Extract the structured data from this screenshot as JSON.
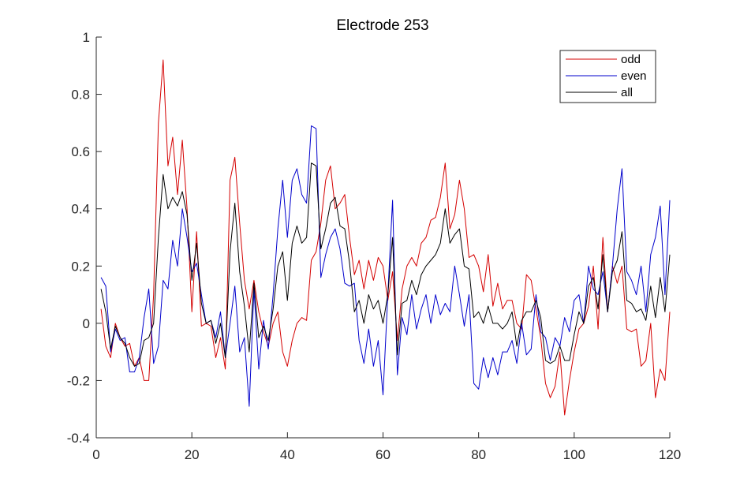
{
  "chart_data": {
    "type": "line",
    "title": "Electrode 253",
    "xlabel": "",
    "ylabel": "",
    "xlim": [
      0,
      120
    ],
    "ylim": [
      -0.4,
      1
    ],
    "xticks": [
      0,
      20,
      40,
      60,
      80,
      100,
      120
    ],
    "yticks": [
      -0.4,
      -0.2,
      0,
      0.2,
      0.4,
      0.6,
      0.8,
      1
    ],
    "x_tick_labels": [
      "0",
      "20",
      "40",
      "60",
      "80",
      "100",
      "120"
    ],
    "y_tick_labels": [
      "-0.4",
      "-0.2",
      "0",
      "0.2",
      "0.4",
      "0.6",
      "0.8",
      "1"
    ],
    "grid": false,
    "legend_position": "top-right",
    "x": [
      1,
      2,
      3,
      4,
      5,
      6,
      7,
      8,
      9,
      10,
      11,
      12,
      13,
      14,
      15,
      16,
      17,
      18,
      19,
      20,
      21,
      22,
      23,
      24,
      25,
      26,
      27,
      28,
      29,
      30,
      31,
      32,
      33,
      34,
      35,
      36,
      37,
      38,
      39,
      40,
      41,
      42,
      43,
      44,
      45,
      46,
      47,
      48,
      49,
      50,
      51,
      52,
      53,
      54,
      55,
      56,
      57,
      58,
      59,
      60,
      61,
      62,
      63,
      64,
      65,
      66,
      67,
      68,
      69,
      70,
      71,
      72,
      73,
      74,
      75,
      76,
      77,
      78,
      79,
      80,
      81,
      82,
      83,
      84,
      85,
      86,
      87,
      88,
      89,
      90,
      91,
      92,
      93,
      94,
      95,
      96,
      97,
      98,
      99,
      100,
      101,
      102,
      103,
      104,
      105,
      106,
      107,
      108,
      109,
      110,
      111,
      112,
      113,
      114,
      115,
      116,
      117,
      118,
      119,
      120
    ],
    "series": [
      {
        "name": "odd",
        "color": "#d40000",
        "values": [
          0.05,
          -0.08,
          -0.12,
          0.0,
          -0.05,
          -0.08,
          -0.07,
          -0.15,
          -0.12,
          -0.2,
          -0.2,
          0.1,
          0.7,
          0.92,
          0.55,
          0.65,
          0.45,
          0.64,
          0.4,
          0.04,
          0.32,
          -0.01,
          0.0,
          -0.01,
          -0.12,
          -0.05,
          -0.16,
          0.5,
          0.58,
          0.35,
          0.15,
          0.05,
          0.15,
          0.04,
          -0.03,
          -0.08,
          0.0,
          0.04,
          -0.1,
          -0.15,
          -0.06,
          0.0,
          0.02,
          0.01,
          0.22,
          0.25,
          0.35,
          0.5,
          0.55,
          0.4,
          0.42,
          0.45,
          0.3,
          0.17,
          0.22,
          0.12,
          0.22,
          0.15,
          0.23,
          0.2,
          0.08,
          0.18,
          -0.06,
          0.12,
          0.2,
          0.23,
          0.2,
          0.28,
          0.3,
          0.36,
          0.37,
          0.44,
          0.56,
          0.33,
          0.38,
          0.5,
          0.4,
          0.23,
          0.24,
          0.2,
          0.11,
          0.24,
          0.06,
          0.14,
          0.05,
          0.08,
          0.08,
          0.0,
          -0.02,
          0.17,
          0.15,
          0.05,
          -0.05,
          -0.21,
          -0.26,
          -0.22,
          -0.1,
          -0.32,
          -0.2,
          -0.1,
          -0.02,
          0.0,
          0.06,
          0.2,
          -0.02,
          0.3,
          0.04,
          0.2,
          0.14,
          0.2,
          -0.02,
          -0.03,
          -0.02,
          -0.15,
          -0.13,
          0.0,
          -0.26,
          -0.16,
          -0.2,
          0.04
        ]
      },
      {
        "name": "even",
        "color": "#0000cc",
        "values": [
          0.16,
          0.13,
          -0.1,
          -0.02,
          -0.06,
          -0.05,
          -0.17,
          -0.17,
          -0.12,
          0.02,
          0.12,
          -0.14,
          -0.08,
          0.15,
          0.12,
          0.29,
          0.2,
          0.4,
          0.3,
          0.18,
          0.21,
          0.1,
          0.0,
          0.01,
          -0.05,
          0.04,
          -0.12,
          0.0,
          0.13,
          -0.1,
          -0.05,
          -0.29,
          0.12,
          -0.16,
          0.01,
          -0.09,
          0.1,
          0.33,
          0.5,
          0.3,
          0.5,
          0.54,
          0.45,
          0.42,
          0.69,
          0.68,
          0.16,
          0.24,
          0.3,
          0.33,
          0.26,
          0.14,
          0.13,
          0.14,
          -0.06,
          -0.14,
          -0.02,
          -0.15,
          -0.06,
          -0.25,
          0.1,
          0.43,
          -0.18,
          0.02,
          -0.04,
          0.1,
          -0.02,
          0.05,
          0.1,
          0.0,
          0.1,
          0.03,
          0.07,
          0.04,
          0.2,
          0.1,
          -0.01,
          0.1,
          -0.21,
          -0.23,
          -0.12,
          -0.19,
          -0.12,
          -0.18,
          -0.1,
          -0.1,
          -0.06,
          -0.14,
          0.0,
          -0.11,
          -0.09,
          0.1,
          -0.03,
          -0.05,
          -0.13,
          -0.05,
          -0.08,
          0.02,
          -0.03,
          0.08,
          0.1,
          0.0,
          0.2,
          0.12,
          0.1,
          0.18,
          0.04,
          0.2,
          0.4,
          0.54,
          0.18,
          0.15,
          0.1,
          0.2,
          0.04,
          0.24,
          0.3,
          0.41,
          0.1,
          0.43
        ]
      },
      {
        "name": "all",
        "color": "#000000",
        "values": [
          0.12,
          0.04,
          -0.09,
          -0.01,
          -0.05,
          -0.07,
          -0.12,
          -0.15,
          -0.14,
          -0.06,
          -0.05,
          0.0,
          0.3,
          0.52,
          0.4,
          0.44,
          0.41,
          0.46,
          0.38,
          0.15,
          0.28,
          0.07,
          0.0,
          0.01,
          -0.07,
          0.0,
          -0.12,
          0.25,
          0.42,
          0.18,
          0.06,
          -0.1,
          0.14,
          -0.05,
          -0.01,
          -0.06,
          0.05,
          0.2,
          0.25,
          0.08,
          0.28,
          0.34,
          0.28,
          0.3,
          0.56,
          0.55,
          0.26,
          0.33,
          0.42,
          0.44,
          0.34,
          0.33,
          0.21,
          0.04,
          0.08,
          0.0,
          0.1,
          0.05,
          0.08,
          0.0,
          0.1,
          0.3,
          -0.11,
          0.07,
          0.08,
          0.15,
          0.1,
          0.17,
          0.2,
          0.22,
          0.24,
          0.28,
          0.4,
          0.28,
          0.31,
          0.33,
          0.2,
          0.19,
          0.02,
          0.04,
          0.0,
          0.06,
          0.0,
          0.0,
          -0.02,
          0.0,
          0.04,
          -0.08,
          0.01,
          0.04,
          0.04,
          0.08,
          0.02,
          -0.13,
          -0.14,
          -0.13,
          -0.08,
          -0.13,
          -0.13,
          -0.04,
          0.04,
          0.0,
          0.13,
          0.16,
          0.05,
          0.24,
          0.04,
          0.18,
          0.22,
          0.32,
          0.08,
          0.07,
          0.04,
          0.05,
          0.01,
          0.13,
          0.02,
          0.16,
          0.04,
          0.24
        ]
      }
    ]
  }
}
